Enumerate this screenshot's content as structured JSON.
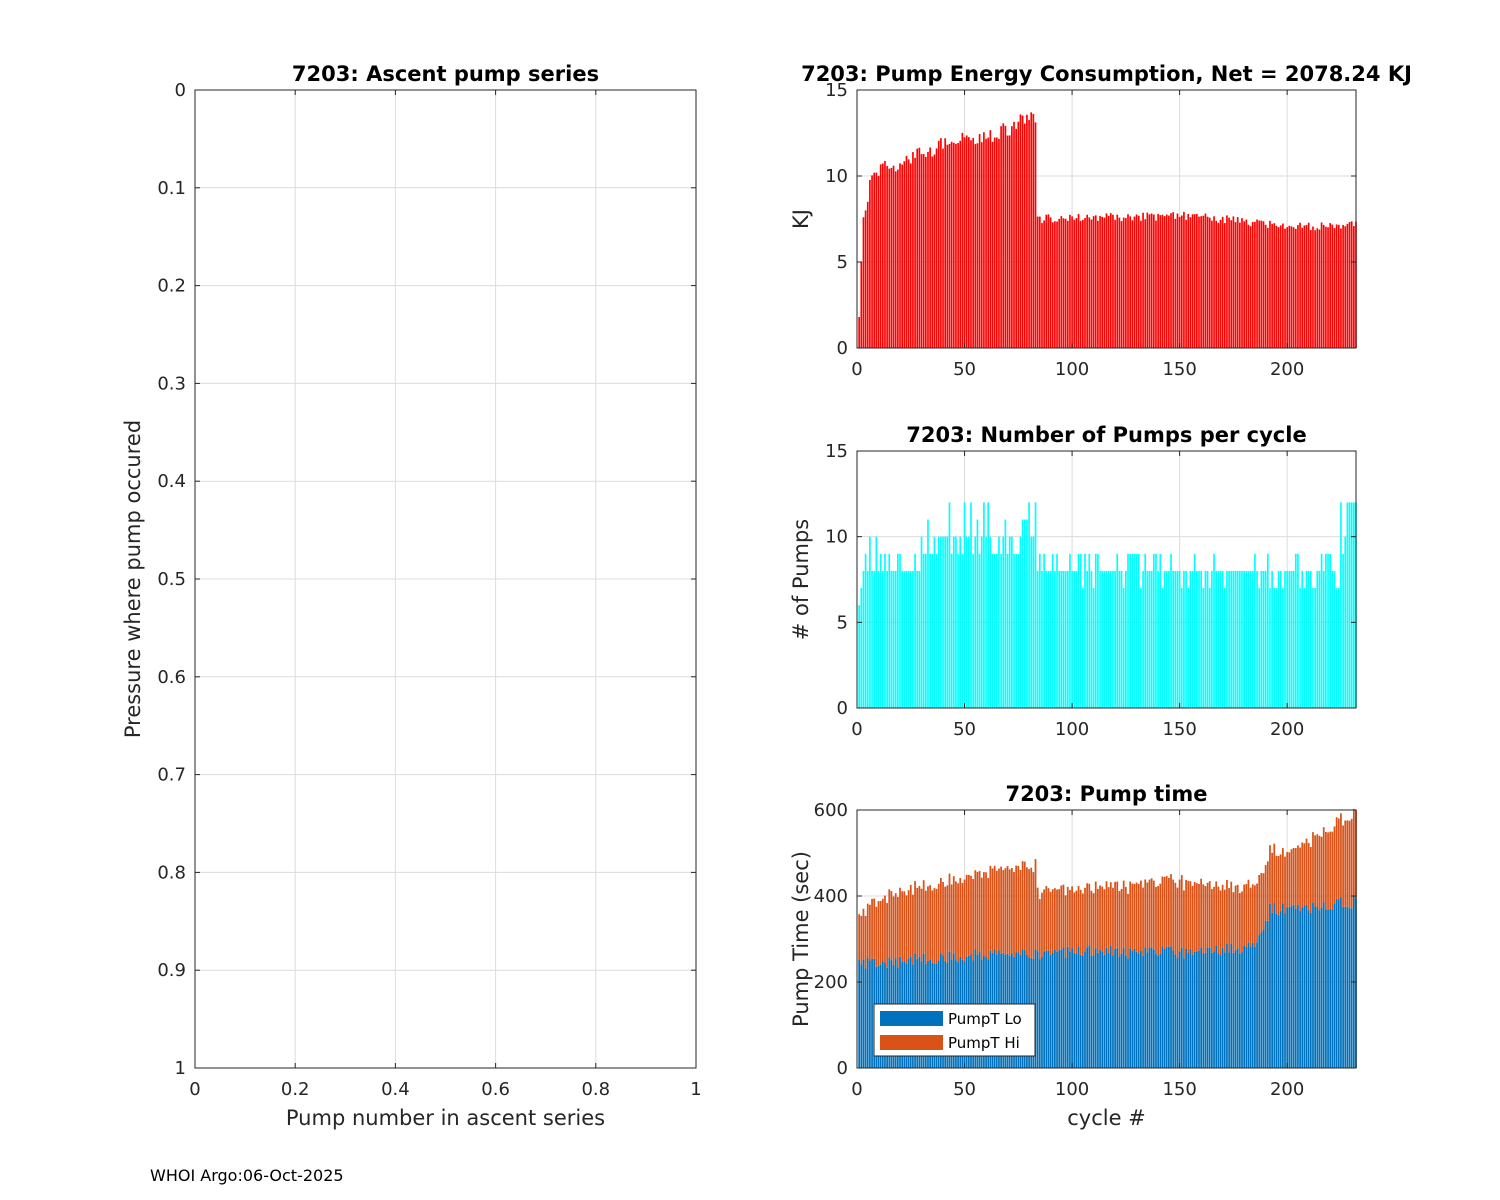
{
  "footer": "WHOI Argo:06-Oct-2025",
  "chart_data": [
    {
      "id": "ascent",
      "type": "scatter",
      "title": "7203: Ascent pump series",
      "xlabel": "Pump number in ascent series",
      "ylabel": "Pressure where pump occured",
      "xlim": [
        0,
        1
      ],
      "ylim": [
        0,
        1
      ],
      "y_reversed": true,
      "xticks": [
        0,
        0.2,
        0.4,
        0.6,
        0.8,
        1
      ],
      "xtick_labels": [
        "0",
        "0.2",
        "0.4",
        "0.6",
        "0.8",
        "1"
      ],
      "yticks": [
        0,
        0.1,
        0.2,
        0.3,
        0.4,
        0.5,
        0.6,
        0.7,
        0.8,
        0.9,
        1
      ],
      "ytick_labels": [
        "0",
        "0.1",
        "0.2",
        "0.3",
        "0.4",
        "0.5",
        "0.6",
        "0.7",
        "0.8",
        "0.9",
        "1"
      ],
      "grid": true,
      "series": []
    },
    {
      "id": "energy",
      "type": "bar",
      "title": "7203: Pump Energy Consumption,  Net = 2078.24 KJ",
      "xlabel": "",
      "ylabel": "KJ",
      "xlim": [
        0,
        232
      ],
      "ylim": [
        0,
        15
      ],
      "xticks": [
        0,
        50,
        100,
        150,
        200
      ],
      "xtick_labels": [
        "0",
        "50",
        "100",
        "150",
        "200"
      ],
      "yticks": [
        0,
        5,
        10,
        15
      ],
      "ytick_labels": [
        "0",
        "5",
        "10",
        "15"
      ],
      "grid": true,
      "color": "#ff0000",
      "values_generated": true,
      "n_cycles": 232,
      "anchors": [
        [
          1,
          1.8
        ],
        [
          2,
          5
        ],
        [
          3,
          7.6
        ],
        [
          4,
          8
        ],
        [
          6,
          9.8
        ],
        [
          10,
          10.3
        ],
        [
          20,
          10.8
        ],
        [
          30,
          11.3
        ],
        [
          40,
          11.8
        ],
        [
          50,
          12.2
        ],
        [
          60,
          12.3
        ],
        [
          70,
          12.7
        ],
        [
          78,
          13.3
        ],
        [
          83,
          13.4
        ],
        [
          84,
          7.5
        ],
        [
          100,
          7.6
        ],
        [
          130,
          7.6
        ],
        [
          150,
          7.7
        ],
        [
          170,
          7.5
        ],
        [
          190,
          7.2
        ],
        [
          200,
          7.0
        ],
        [
          232,
          7.2
        ]
      ]
    },
    {
      "id": "pumps",
      "type": "bar",
      "title": "7203: Number of Pumps per cycle",
      "xlabel": "",
      "ylabel": "# of Pumps",
      "xlim": [
        0,
        232
      ],
      "ylim": [
        0,
        15
      ],
      "xticks": [
        0,
        50,
        100,
        150,
        200
      ],
      "xtick_labels": [
        "0",
        "50",
        "100",
        "150",
        "200"
      ],
      "yticks": [
        0,
        5,
        10,
        15
      ],
      "ytick_labels": [
        "0",
        "5",
        "10",
        "15"
      ],
      "grid": true,
      "color": "#00ffff",
      "values_generated": true,
      "n_cycles": 232
    },
    {
      "id": "time",
      "type": "bar",
      "stacked": true,
      "title": "7203: Pump time",
      "xlabel": "cycle #",
      "ylabel": "Pump Time (sec)",
      "xlim": [
        0,
        232
      ],
      "ylim": [
        0,
        600
      ],
      "xticks": [
        0,
        50,
        100,
        150,
        200
      ],
      "xtick_labels": [
        "0",
        "50",
        "100",
        "150",
        "200"
      ],
      "yticks": [
        0,
        200,
        400,
        600
      ],
      "ytick_labels": [
        "0",
        "200",
        "400",
        "600"
      ],
      "grid": true,
      "legend_position": "bottom-left",
      "values_generated": true,
      "n_cycles": 232,
      "series": [
        {
          "name": "PumpT Lo",
          "color": "#0072bd",
          "anchors": [
            [
              1,
              245
            ],
            [
              10,
              245
            ],
            [
              50,
              262
            ],
            [
              85,
              265
            ],
            [
              100,
              272
            ],
            [
              150,
              268
            ],
            [
              185,
              280
            ],
            [
              192,
              370
            ],
            [
              200,
              370
            ],
            [
              232,
              385
            ]
          ]
        },
        {
          "name": "PumpT Hi",
          "color": "#d95319",
          "anchors": [
            [
              1,
              105
            ],
            [
              10,
              150
            ],
            [
              50,
              185
            ],
            [
              83,
              208
            ],
            [
              84,
              143
            ],
            [
              100,
              145
            ],
            [
              150,
              165
            ],
            [
              190,
              135
            ],
            [
              193,
              140
            ],
            [
              200,
              130
            ],
            [
              232,
              210
            ]
          ]
        }
      ]
    }
  ]
}
